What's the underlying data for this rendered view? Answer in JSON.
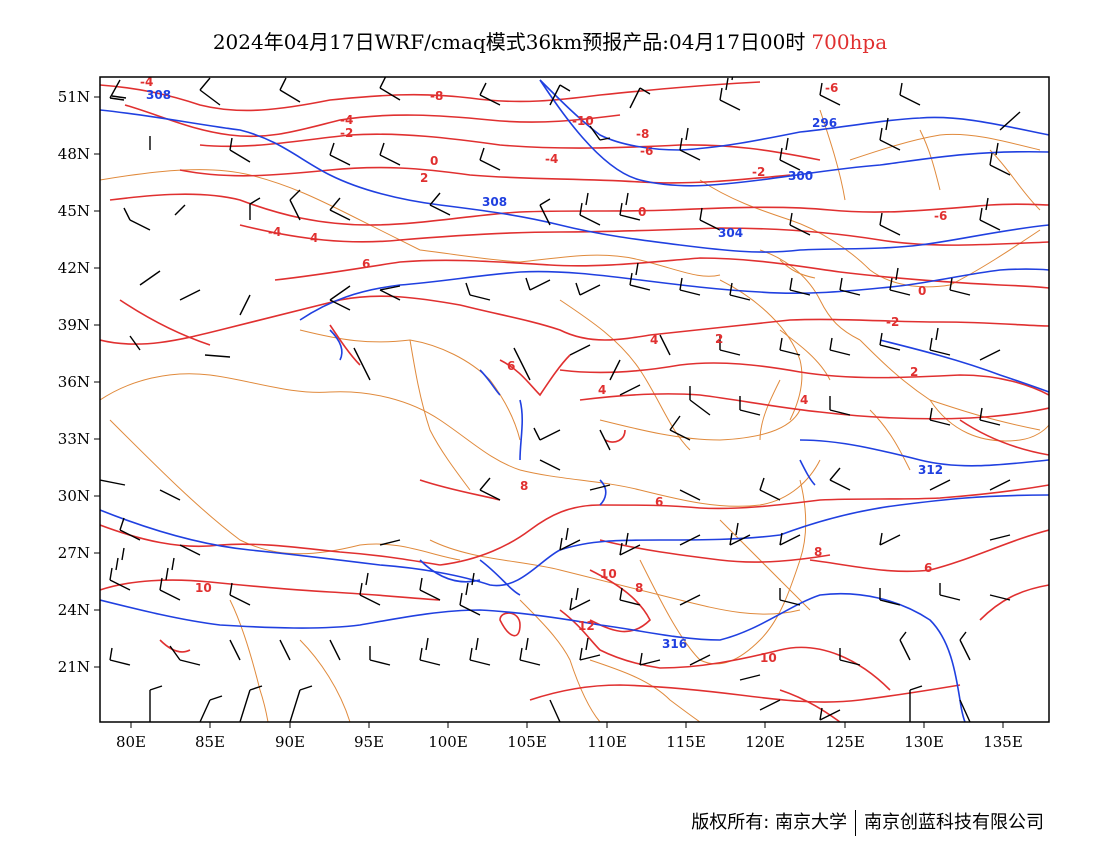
{
  "header": {
    "title": "2024年04月17日WRF/cmaq模式36km预报产品:04月17日00时",
    "level": "700hpa"
  },
  "axes": {
    "lat_labels": [
      "51N",
      "48N",
      "45N",
      "42N",
      "39N",
      "36N",
      "33N",
      "30N",
      "27N",
      "24N",
      "21N"
    ],
    "lon_labels": [
      "80E",
      "85E",
      "90E",
      "95E",
      "100E",
      "105E",
      "110E",
      "115E",
      "120E",
      "125E",
      "130E",
      "135E"
    ]
  },
  "contours": {
    "temperature_labels": [
      "-4",
      "-6",
      "-8",
      "-10",
      "-4",
      "-2",
      "0",
      "2",
      "4",
      "6",
      "-8",
      "-6",
      "-4",
      "-2",
      "0",
      "4",
      "6",
      "8",
      "10",
      "12",
      "2",
      "4",
      "6",
      "8",
      "10",
      "-6",
      "-4",
      "-2",
      "0",
      "2",
      "4",
      "6",
      "8",
      "10"
    ],
    "height_labels": [
      "308",
      "296",
      "300",
      "304",
      "308",
      "312",
      "316"
    ]
  },
  "colors": {
    "temperature": "#e03030",
    "height": "#2040e0",
    "boundary": "#e08a3c",
    "wind": "#000000"
  },
  "footer": {
    "copyright": "版权所有: 南京大学",
    "company": "南京创蓝科技有限公司"
  }
}
